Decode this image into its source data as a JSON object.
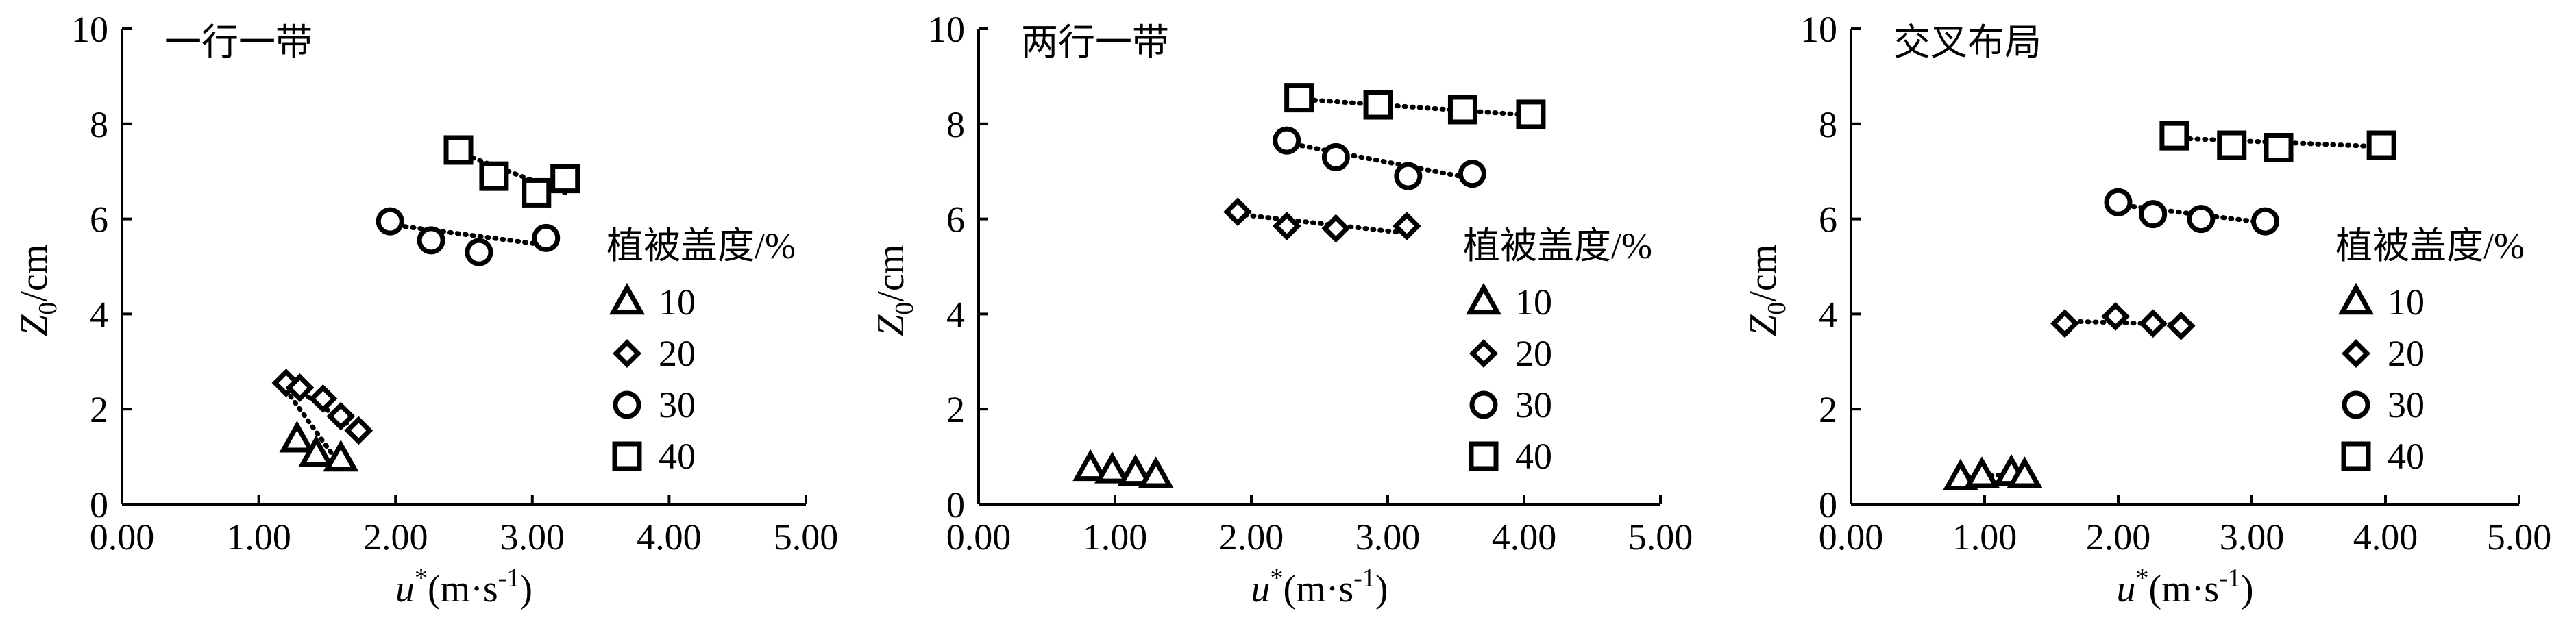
{
  "chart_data": [
    {
      "type": "scatter",
      "title": "一行一带",
      "ylabel_main": "Z",
      "ylabel_sub": "0",
      "ylabel_unit": "/cm",
      "xlabel_main": "u",
      "xlabel_sup": "*",
      "xlabel_unit": "(m·s",
      "xlabel_exp": "-1",
      "xlabel_close": ")",
      "xlim": [
        0,
        5
      ],
      "ylim": [
        0,
        10
      ],
      "x_ticks": [
        "0.00",
        "1.00",
        "2.00",
        "3.00",
        "4.00",
        "5.00"
      ],
      "y_ticks": [
        "0",
        "2",
        "4",
        "6",
        "8",
        "10"
      ],
      "legend_title": "植被盖度/%",
      "series": [
        {
          "name": "10",
          "marker": "triangle",
          "points": [
            [
              1.28,
              1.35
            ],
            [
              1.42,
              1.05
            ],
            [
              1.6,
              0.95
            ]
          ],
          "trend": [
            [
              1.2,
              2.4
            ],
            [
              1.6,
              0.8
            ]
          ]
        },
        {
          "name": "20",
          "marker": "diamond",
          "points": [
            [
              1.2,
              2.55
            ],
            [
              1.3,
              2.45
            ],
            [
              1.47,
              2.22
            ],
            [
              1.6,
              1.85
            ],
            [
              1.73,
              1.55
            ]
          ],
          "trend": [
            [
              1.18,
              2.62
            ],
            [
              1.75,
              1.48
            ]
          ]
        },
        {
          "name": "30",
          "marker": "circle",
          "points": [
            [
              1.96,
              5.95
            ],
            [
              2.26,
              5.55
            ],
            [
              2.61,
              5.3
            ],
            [
              3.1,
              5.6
            ]
          ],
          "trend": [
            [
              1.96,
              5.88
            ],
            [
              3.1,
              5.45
            ]
          ]
        },
        {
          "name": "40",
          "marker": "square",
          "points": [
            [
              2.46,
              7.45
            ],
            [
              2.72,
              6.9
            ],
            [
              3.03,
              6.55
            ],
            [
              3.24,
              6.85
            ]
          ],
          "trend": [
            [
              2.46,
              7.4
            ],
            [
              3.24,
              6.55
            ]
          ]
        }
      ]
    },
    {
      "type": "scatter",
      "title": "两行一带",
      "ylabel_main": "Z",
      "ylabel_sub": "0",
      "ylabel_unit": "/cm",
      "xlabel_main": "u",
      "xlabel_sup": "*",
      "xlabel_unit": "(m·s",
      "xlabel_exp": "-1",
      "xlabel_close": ")",
      "xlim": [
        0,
        5
      ],
      "ylim": [
        0,
        10
      ],
      "x_ticks": [
        "0.00",
        "1.00",
        "2.00",
        "3.00",
        "4.00",
        "5.00"
      ],
      "y_ticks": [
        "0",
        "2",
        "4",
        "6",
        "8",
        "10"
      ],
      "legend_title": "植被盖度/%",
      "series": [
        {
          "name": "10",
          "marker": "triangle",
          "points": [
            [
              0.82,
              0.75
            ],
            [
              0.98,
              0.7
            ],
            [
              1.15,
              0.65
            ],
            [
              1.3,
              0.6
            ]
          ],
          "trend": [
            [
              0.82,
              0.72
            ],
            [
              1.3,
              0.6
            ]
          ]
        },
        {
          "name": "20",
          "marker": "diamond",
          "points": [
            [
              1.9,
              6.15
            ],
            [
              2.26,
              5.85
            ],
            [
              2.62,
              5.8
            ],
            [
              3.14,
              5.85
            ]
          ],
          "trend": [
            [
              1.9,
              6.1
            ],
            [
              3.14,
              5.7
            ]
          ]
        },
        {
          "name": "30",
          "marker": "circle",
          "points": [
            [
              2.26,
              7.65
            ],
            [
              2.62,
              7.3
            ],
            [
              3.15,
              6.9
            ],
            [
              3.62,
              6.95
            ]
          ],
          "trend": [
            [
              2.26,
              7.6
            ],
            [
              3.62,
              6.85
            ]
          ]
        },
        {
          "name": "40",
          "marker": "square",
          "points": [
            [
              2.35,
              8.55
            ],
            [
              2.93,
              8.4
            ],
            [
              3.55,
              8.3
            ],
            [
              4.05,
              8.2
            ]
          ],
          "trend": [
            [
              2.35,
              8.52
            ],
            [
              4.05,
              8.18
            ]
          ]
        }
      ]
    },
    {
      "type": "scatter",
      "title": "交叉布局",
      "ylabel_main": "Z",
      "ylabel_sub": "0",
      "ylabel_unit": "/cm",
      "xlabel_main": "u",
      "xlabel_sup": "*",
      "xlabel_unit": "(m·s",
      "xlabel_exp": "-1",
      "xlabel_close": ")",
      "xlim": [
        0,
        5
      ],
      "ylim": [
        0,
        10
      ],
      "x_ticks": [
        "0.00",
        "1.00",
        "2.00",
        "3.00",
        "4.00",
        "5.00"
      ],
      "y_ticks": [
        "0",
        "2",
        "4",
        "6",
        "8",
        "10"
      ],
      "legend_title": "植被盖度/%",
      "series": [
        {
          "name": "10",
          "marker": "triangle",
          "points": [
            [
              0.82,
              0.55
            ],
            [
              0.98,
              0.6
            ],
            [
              1.2,
              0.65
            ],
            [
              1.3,
              0.6
            ]
          ],
          "trend": [
            [
              0.82,
              0.55
            ],
            [
              1.3,
              0.65
            ]
          ]
        },
        {
          "name": "20",
          "marker": "diamond",
          "points": [
            [
              1.6,
              3.8
            ],
            [
              1.98,
              3.95
            ],
            [
              2.26,
              3.8
            ],
            [
              2.47,
              3.75
            ]
          ],
          "trend": [
            [
              1.6,
              3.85
            ],
            [
              2.47,
              3.78
            ]
          ]
        },
        {
          "name": "30",
          "marker": "circle",
          "points": [
            [
              2.0,
              6.35
            ],
            [
              2.26,
              6.1
            ],
            [
              2.62,
              6.0
            ],
            [
              3.1,
              5.95
            ]
          ],
          "trend": [
            [
              2.0,
              6.3
            ],
            [
              3.1,
              5.92
            ]
          ]
        },
        {
          "name": "40",
          "marker": "square",
          "points": [
            [
              2.42,
              7.75
            ],
            [
              2.85,
              7.55
            ],
            [
              3.2,
              7.5
            ],
            [
              3.97,
              7.55
            ]
          ],
          "trend": [
            [
              2.42,
              7.7
            ],
            [
              3.97,
              7.52
            ]
          ]
        }
      ]
    }
  ]
}
